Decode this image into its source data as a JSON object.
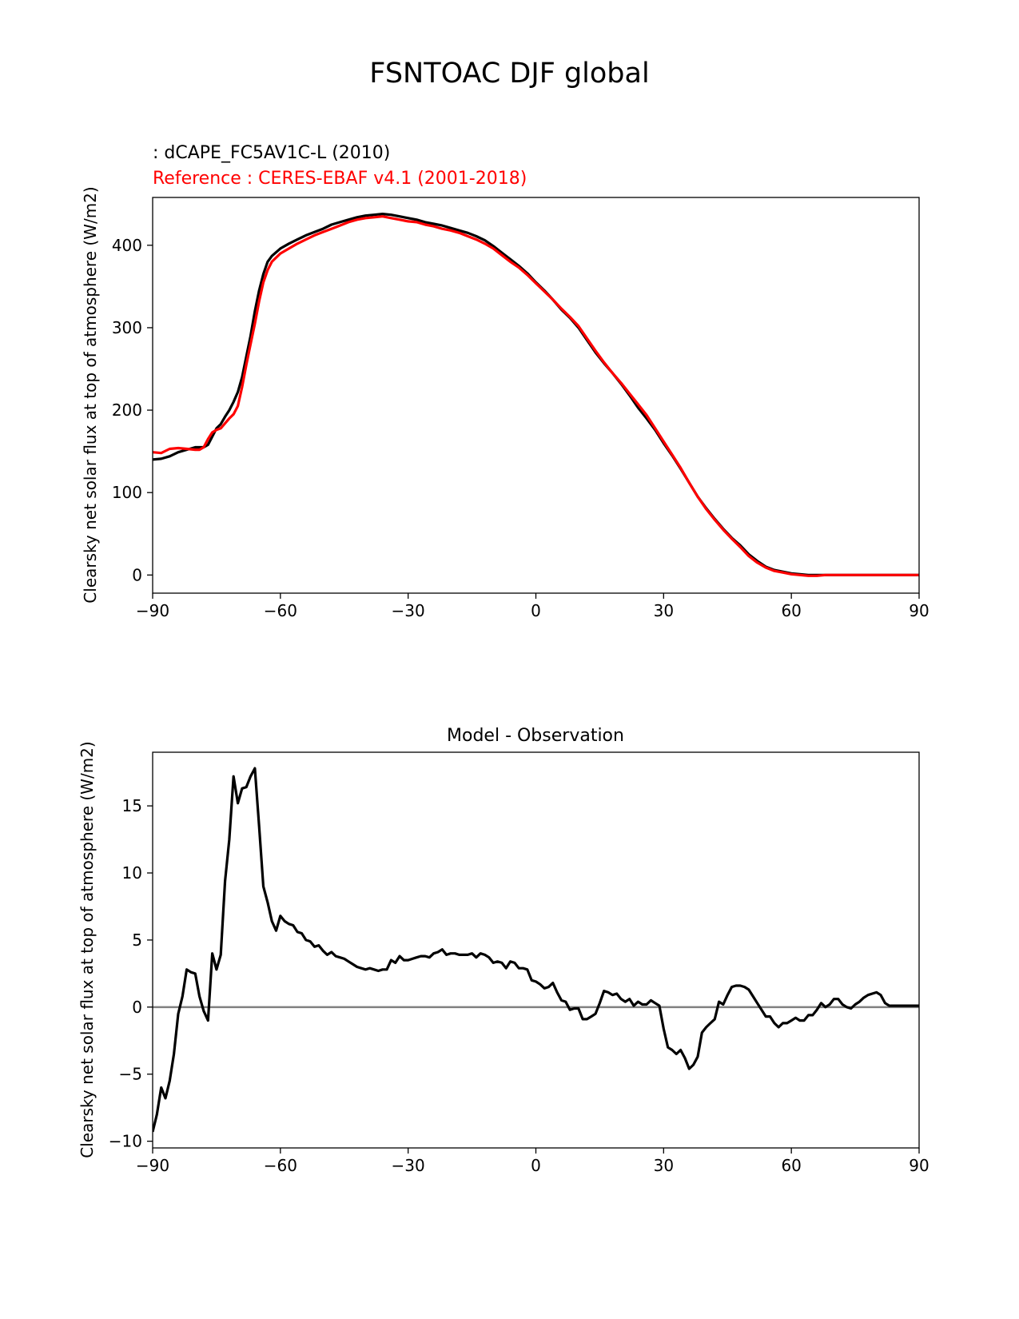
{
  "figure": {
    "title": "FSNTOAC DJF global"
  },
  "chart_data": [
    {
      "type": "line",
      "title_lines": [
        {
          "text": " : dCAPE_FC5AV1C-L (2010)",
          "color": "#000000"
        },
        {
          "text": "Reference : CERES-EBAF v4.1 (2001-2018)",
          "color": "#ff0000"
        }
      ],
      "xlabel": "",
      "ylabel": "Clearsky net solar flux at top of atmosphere (W/m2)",
      "xlim": [
        -90,
        90
      ],
      "ylim": [
        -22,
        458
      ],
      "xticks": [
        -90,
        -60,
        -30,
        0,
        30,
        60,
        90
      ],
      "xtick_labels": [
        "−90",
        "−60",
        "−30",
        "0",
        "30",
        "60",
        "90"
      ],
      "yticks": [
        0,
        100,
        200,
        300,
        400
      ],
      "ytick_labels": [
        "0",
        "100",
        "200",
        "300",
        "400"
      ],
      "grid": false,
      "series": [
        {
          "color": "#000000",
          "x": [
            -90,
            -88,
            -86,
            -84,
            -82,
            -80,
            -79,
            -78,
            -77,
            -76,
            -75,
            -74,
            -73,
            -72,
            -71,
            -70,
            -69,
            -68,
            -67,
            -66,
            -65,
            -64,
            -63,
            -62,
            -60,
            -58,
            -56,
            -54,
            -52,
            -50,
            -48,
            -46,
            -44,
            -42,
            -40,
            -38,
            -36,
            -34,
            -32,
            -30,
            -28,
            -26,
            -24,
            -22,
            -20,
            -18,
            -16,
            -14,
            -12,
            -10,
            -8,
            -6,
            -4,
            -2,
            0,
            2,
            4,
            6,
            8,
            10,
            12,
            14,
            16,
            18,
            20,
            22,
            24,
            26,
            28,
            30,
            32,
            34,
            36,
            38,
            40,
            42,
            44,
            46,
            48,
            50,
            52,
            54,
            56,
            58,
            60,
            62,
            64,
            66,
            68,
            70,
            72,
            74,
            76,
            78,
            80,
            82,
            84,
            86,
            88,
            90
          ],
          "y": [
            140,
            141,
            144,
            149,
            152,
            155,
            155,
            155,
            158,
            168,
            178,
            183,
            192,
            200,
            210,
            222,
            240,
            265,
            290,
            320,
            345,
            365,
            380,
            387,
            396,
            402,
            407,
            412,
            416,
            420,
            425,
            428,
            431,
            434,
            436,
            437,
            438,
            437,
            435,
            433,
            431,
            428,
            426,
            424,
            421,
            418,
            415,
            411,
            406,
            399,
            391,
            383,
            375,
            366,
            355,
            345,
            334,
            322,
            312,
            300,
            285,
            270,
            257,
            245,
            232,
            218,
            203,
            190,
            176,
            160,
            145,
            129,
            112,
            95,
            81,
            68,
            56,
            45,
            36,
            25,
            17,
            10,
            6,
            4,
            2,
            1,
            0,
            0,
            0,
            0,
            0,
            0,
            0,
            0,
            0,
            0,
            0,
            0,
            0,
            0
          ]
        },
        {
          "color": "#ff0000",
          "x": [
            -90,
            -88,
            -86,
            -84,
            -82,
            -80,
            -79,
            -78,
            -77,
            -76,
            -75,
            -74,
            -73,
            -72,
            -71,
            -70,
            -69,
            -68,
            -67,
            -66,
            -65,
            -64,
            -63,
            -62,
            -60,
            -58,
            -56,
            -54,
            -52,
            -50,
            -48,
            -46,
            -44,
            -42,
            -40,
            -38,
            -36,
            -34,
            -32,
            -30,
            -28,
            -26,
            -24,
            -22,
            -20,
            -18,
            -16,
            -14,
            -12,
            -10,
            -8,
            -6,
            -4,
            -2,
            0,
            2,
            4,
            6,
            8,
            10,
            12,
            14,
            16,
            18,
            20,
            22,
            24,
            26,
            28,
            30,
            32,
            34,
            36,
            38,
            40,
            42,
            44,
            46,
            48,
            50,
            52,
            54,
            56,
            58,
            60,
            62,
            64,
            66,
            68,
            70,
            72,
            74,
            76,
            78,
            80,
            82,
            84,
            86,
            88,
            90
          ],
          "y": [
            149,
            148,
            153,
            154,
            153,
            152,
            152,
            155,
            165,
            173,
            176,
            178,
            184,
            190,
            195,
            205,
            228,
            255,
            280,
            305,
            332,
            355,
            370,
            380,
            390,
            396,
            402,
            407,
            412,
            416,
            420,
            424,
            428,
            431,
            433,
            434,
            435,
            433,
            431,
            429,
            428,
            425,
            423,
            420,
            418,
            415,
            411,
            407,
            402,
            396,
            388,
            380,
            373,
            364,
            354,
            344,
            334,
            323,
            313,
            302,
            287,
            272,
            258,
            245,
            233,
            220,
            207,
            194,
            178,
            162,
            146,
            130,
            112,
            95,
            80,
            67,
            55,
            44,
            34,
            23,
            15,
            9,
            5,
            3,
            1,
            0,
            -1,
            -1,
            0,
            0,
            0,
            0,
            0,
            0,
            0,
            0,
            0,
            0,
            0,
            0
          ]
        }
      ]
    },
    {
      "type": "line",
      "title": "Model - Observation",
      "xlabel": "",
      "ylabel": "Clearsky net solar flux at top of atmosphere (W/m2)",
      "xlim": [
        -90,
        90
      ],
      "ylim": [
        -10.5,
        19
      ],
      "xticks": [
        -90,
        -60,
        -30,
        0,
        30,
        60,
        90
      ],
      "xtick_labels": [
        "−90",
        "−60",
        "−30",
        "0",
        "30",
        "60",
        "90"
      ],
      "yticks": [
        -10,
        -5,
        0,
        5,
        10,
        15
      ],
      "ytick_labels": [
        "−10",
        "−5",
        "0",
        "5",
        "10",
        "15"
      ],
      "grid": false,
      "reference_line": {
        "y": 0,
        "color": "#808080"
      },
      "series": [
        {
          "color": "#000000",
          "x": [
            -90,
            -89,
            -88,
            -87,
            -86,
            -85,
            -84,
            -83,
            -82,
            -81,
            -80,
            -79,
            -78,
            -77,
            -76,
            -75,
            -74,
            -73,
            -72,
            -71,
            -70,
            -69,
            -68,
            -67,
            -66,
            -65,
            -64,
            -63,
            -62,
            -61,
            -60,
            -59,
            -58,
            -57,
            -56,
            -55,
            -54,
            -53,
            -52,
            -51,
            -50,
            -49,
            -48,
            -47,
            -46,
            -45,
            -44,
            -43,
            -42,
            -41,
            -40,
            -39,
            -38,
            -37,
            -36,
            -35,
            -34,
            -33,
            -32,
            -31,
            -30,
            -29,
            -28,
            -27,
            -26,
            -25,
            -24,
            -23,
            -22,
            -21,
            -20,
            -19,
            -18,
            -17,
            -16,
            -15,
            -14,
            -13,
            -12,
            -11,
            -10,
            -9,
            -8,
            -7,
            -6,
            -5,
            -4,
            -3,
            -2,
            -1,
            0,
            1,
            2,
            3,
            4,
            5,
            6,
            7,
            8,
            9,
            10,
            11,
            12,
            13,
            14,
            15,
            16,
            17,
            18,
            19,
            20,
            21,
            22,
            23,
            24,
            25,
            26,
            27,
            28,
            29,
            30,
            31,
            32,
            33,
            34,
            35,
            36,
            37,
            38,
            39,
            40,
            41,
            42,
            43,
            44,
            45,
            46,
            47,
            48,
            49,
            50,
            51,
            52,
            53,
            54,
            55,
            56,
            57,
            58,
            59,
            60,
            61,
            62,
            63,
            64,
            65,
            66,
            67,
            68,
            69,
            70,
            71,
            72,
            73,
            74,
            75,
            76,
            77,
            78,
            79,
            80,
            81,
            82,
            83,
            84,
            85,
            86,
            87,
            88,
            89,
            90
          ],
          "y": [
            -9.3,
            -8.0,
            -6.0,
            -6.8,
            -5.5,
            -3.5,
            -0.5,
            0.8,
            2.8,
            2.6,
            2.5,
            0.8,
            -0.3,
            -1.0,
            4.0,
            2.8,
            3.9,
            9.4,
            12.5,
            17.2,
            15.2,
            16.3,
            16.4,
            17.2,
            17.8,
            13.5,
            9.0,
            7.8,
            6.4,
            5.7,
            6.8,
            6.4,
            6.2,
            6.1,
            5.6,
            5.5,
            5.0,
            4.9,
            4.5,
            4.6,
            4.2,
            3.9,
            4.1,
            3.8,
            3.7,
            3.6,
            3.4,
            3.2,
            3.0,
            2.9,
            2.8,
            2.9,
            2.8,
            2.7,
            2.8,
            2.8,
            3.5,
            3.3,
            3.8,
            3.5,
            3.5,
            3.6,
            3.7,
            3.8,
            3.8,
            3.7,
            4.0,
            4.1,
            4.3,
            3.9,
            4.0,
            4.0,
            3.9,
            3.9,
            3.9,
            4.0,
            3.7,
            4.0,
            3.9,
            3.7,
            3.3,
            3.4,
            3.3,
            2.9,
            3.4,
            3.3,
            2.9,
            2.9,
            2.8,
            2.0,
            1.9,
            1.7,
            1.4,
            1.5,
            1.8,
            1.1,
            0.5,
            0.4,
            -0.2,
            -0.1,
            -0.1,
            -0.9,
            -0.9,
            -0.7,
            -0.5,
            0.3,
            1.2,
            1.1,
            0.9,
            1.0,
            0.6,
            0.4,
            0.6,
            0.1,
            0.4,
            0.2,
            0.2,
            0.5,
            0.3,
            0.1,
            -1.6,
            -3.0,
            -3.2,
            -3.5,
            -3.2,
            -3.8,
            -4.6,
            -4.3,
            -3.7,
            -1.9,
            -1.5,
            -1.2,
            -0.9,
            0.4,
            0.2,
            0.9,
            1.5,
            1.6,
            1.6,
            1.5,
            1.3,
            0.8,
            0.3,
            -0.2,
            -0.7,
            -0.7,
            -1.2,
            -1.5,
            -1.2,
            -1.2,
            -1.0,
            -0.8,
            -1.0,
            -1.0,
            -0.6,
            -0.6,
            -0.2,
            0.3,
            0.0,
            0.2,
            0.6,
            0.6,
            0.2,
            0.0,
            -0.1,
            0.2,
            0.4,
            0.7,
            0.9,
            1.0,
            1.1,
            0.9,
            0.3,
            0.1,
            0.1,
            0.1,
            0.1,
            0.1,
            0.1,
            0.1,
            0.1
          ]
        }
      ]
    }
  ]
}
